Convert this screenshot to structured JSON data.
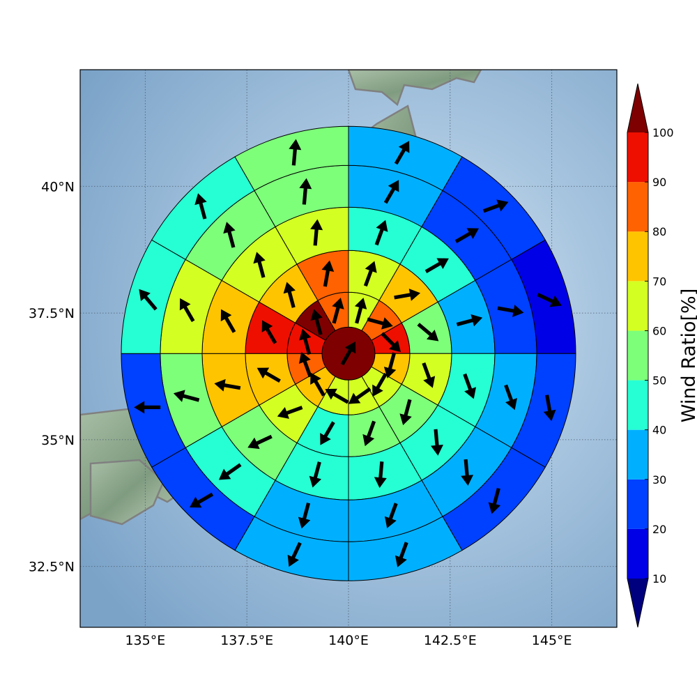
{
  "map": {
    "lon_labels": [
      "135°E",
      "137.5°E",
      "140°E",
      "142.5°E",
      "145°E"
    ],
    "lon_values": [
      135,
      137.5,
      140,
      142.5,
      145
    ],
    "lat_labels": [
      "40°N",
      "37.5°N",
      "35°N",
      "32.5°N"
    ],
    "lat_values": [
      40,
      37.5,
      35,
      32.5
    ],
    "lon_range": [
      133.4,
      146.6
    ],
    "lat_range": [
      31.3,
      42.3
    ],
    "center": {
      "lon": 140,
      "lat": 36.7
    },
    "grid": true,
    "background": "shaded relief ocean/land"
  },
  "colorbar": {
    "label": "Wind Ratio[%]",
    "ticks": [
      "10",
      "20",
      "30",
      "40",
      "50",
      "60",
      "70",
      "80",
      "90",
      "100"
    ],
    "tick_values": [
      10,
      20,
      30,
      40,
      50,
      60,
      70,
      80,
      90,
      100
    ],
    "range": [
      10,
      100
    ],
    "extend": "both",
    "colors": [
      "#00007f",
      "#0000e6",
      "#0040ff",
      "#00b0ff",
      "#26ffd4",
      "#7dff7a",
      "#d4ff22",
      "#ffc400",
      "#ff6200",
      "#ee0f00",
      "#7f0000"
    ]
  },
  "chart_data": {
    "type": "polar-sector-map",
    "sectors_per_ring": 12,
    "sector_order": "clockwise from north, starting at 0°",
    "rings": [
      {
        "ring": 1,
        "ratios": [
          100
        ]
      },
      {
        "ring": 2,
        "ratios": [
          65,
          85,
          95,
          75,
          65,
          65,
          65,
          75,
          85,
          95,
          100,
          85
        ]
      },
      {
        "ring": 3,
        "ratios": [
          65,
          75,
          55,
          65,
          55,
          55,
          45,
          65,
          75,
          95,
          75,
          85
        ]
      },
      {
        "ring": 4,
        "ratios": [
          45,
          45,
          35,
          45,
          45,
          45,
          45,
          55,
          75,
          75,
          65,
          65
        ]
      },
      {
        "ring": 5,
        "ratios": [
          35,
          25,
          25,
          35,
          35,
          35,
          35,
          45,
          55,
          65,
          55,
          55
        ]
      },
      {
        "ring": 6,
        "ratios": [
          35,
          25,
          15,
          25,
          25,
          35,
          35,
          25,
          25,
          45,
          45,
          55
        ]
      }
    ],
    "wind_direction_deg": [
      [
        30
      ],
      [
        15,
        105,
        135,
        195,
        210,
        235,
        300,
        330,
        340,
        345,
        345,
        15
      ],
      [
        20,
        80,
        130,
        160,
        195,
        200,
        210,
        250,
        300,
        330,
        345,
        10
      ],
      [
        20,
        60,
        75,
        160,
        175,
        185,
        195,
        245,
        280,
        330,
        345,
        5
      ],
      [
        30,
        60,
        100,
        160,
        175,
        200,
        195,
        235,
        285,
        330,
        345,
        5
      ],
      [
        30,
        70,
        115,
        170,
        195,
        200,
        205,
        240,
        270,
        320,
        345,
        5
      ]
    ]
  }
}
